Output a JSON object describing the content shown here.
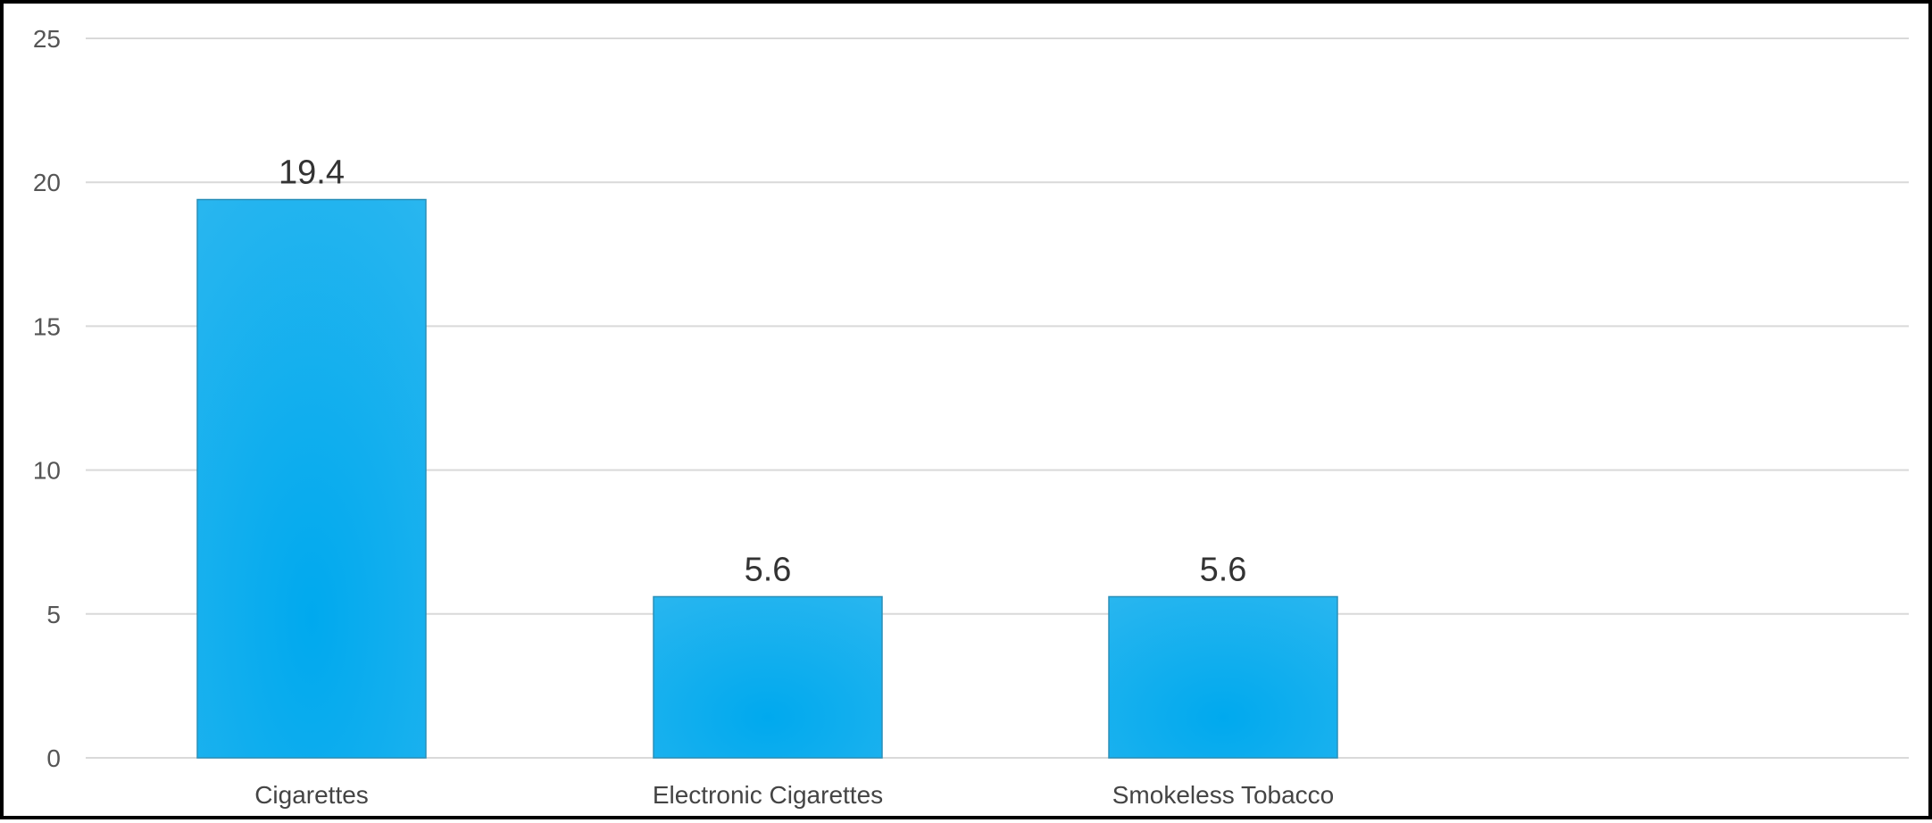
{
  "chart_data": {
    "type": "bar",
    "title": "",
    "xlabel": "",
    "ylabel": "",
    "categories": [
      "Cigarettes",
      "Electronic Cigarettes",
      "Smokeless Tobacco"
    ],
    "values": [
      19.4,
      5.6,
      5.6
    ],
    "data_labels": [
      "19.4",
      "5.6",
      "5.6"
    ],
    "ylim": [
      0,
      25
    ],
    "yticks": [
      0,
      5,
      10,
      15,
      20,
      25
    ],
    "ytick_labels": [
      "0",
      "5",
      "10",
      "15",
      "20",
      "25"
    ],
    "grid": true,
    "legend": "none",
    "bar_color": "#03aeef",
    "bar_color_light": "#2fbaf0",
    "bar_outline": "#2a8fb8"
  }
}
